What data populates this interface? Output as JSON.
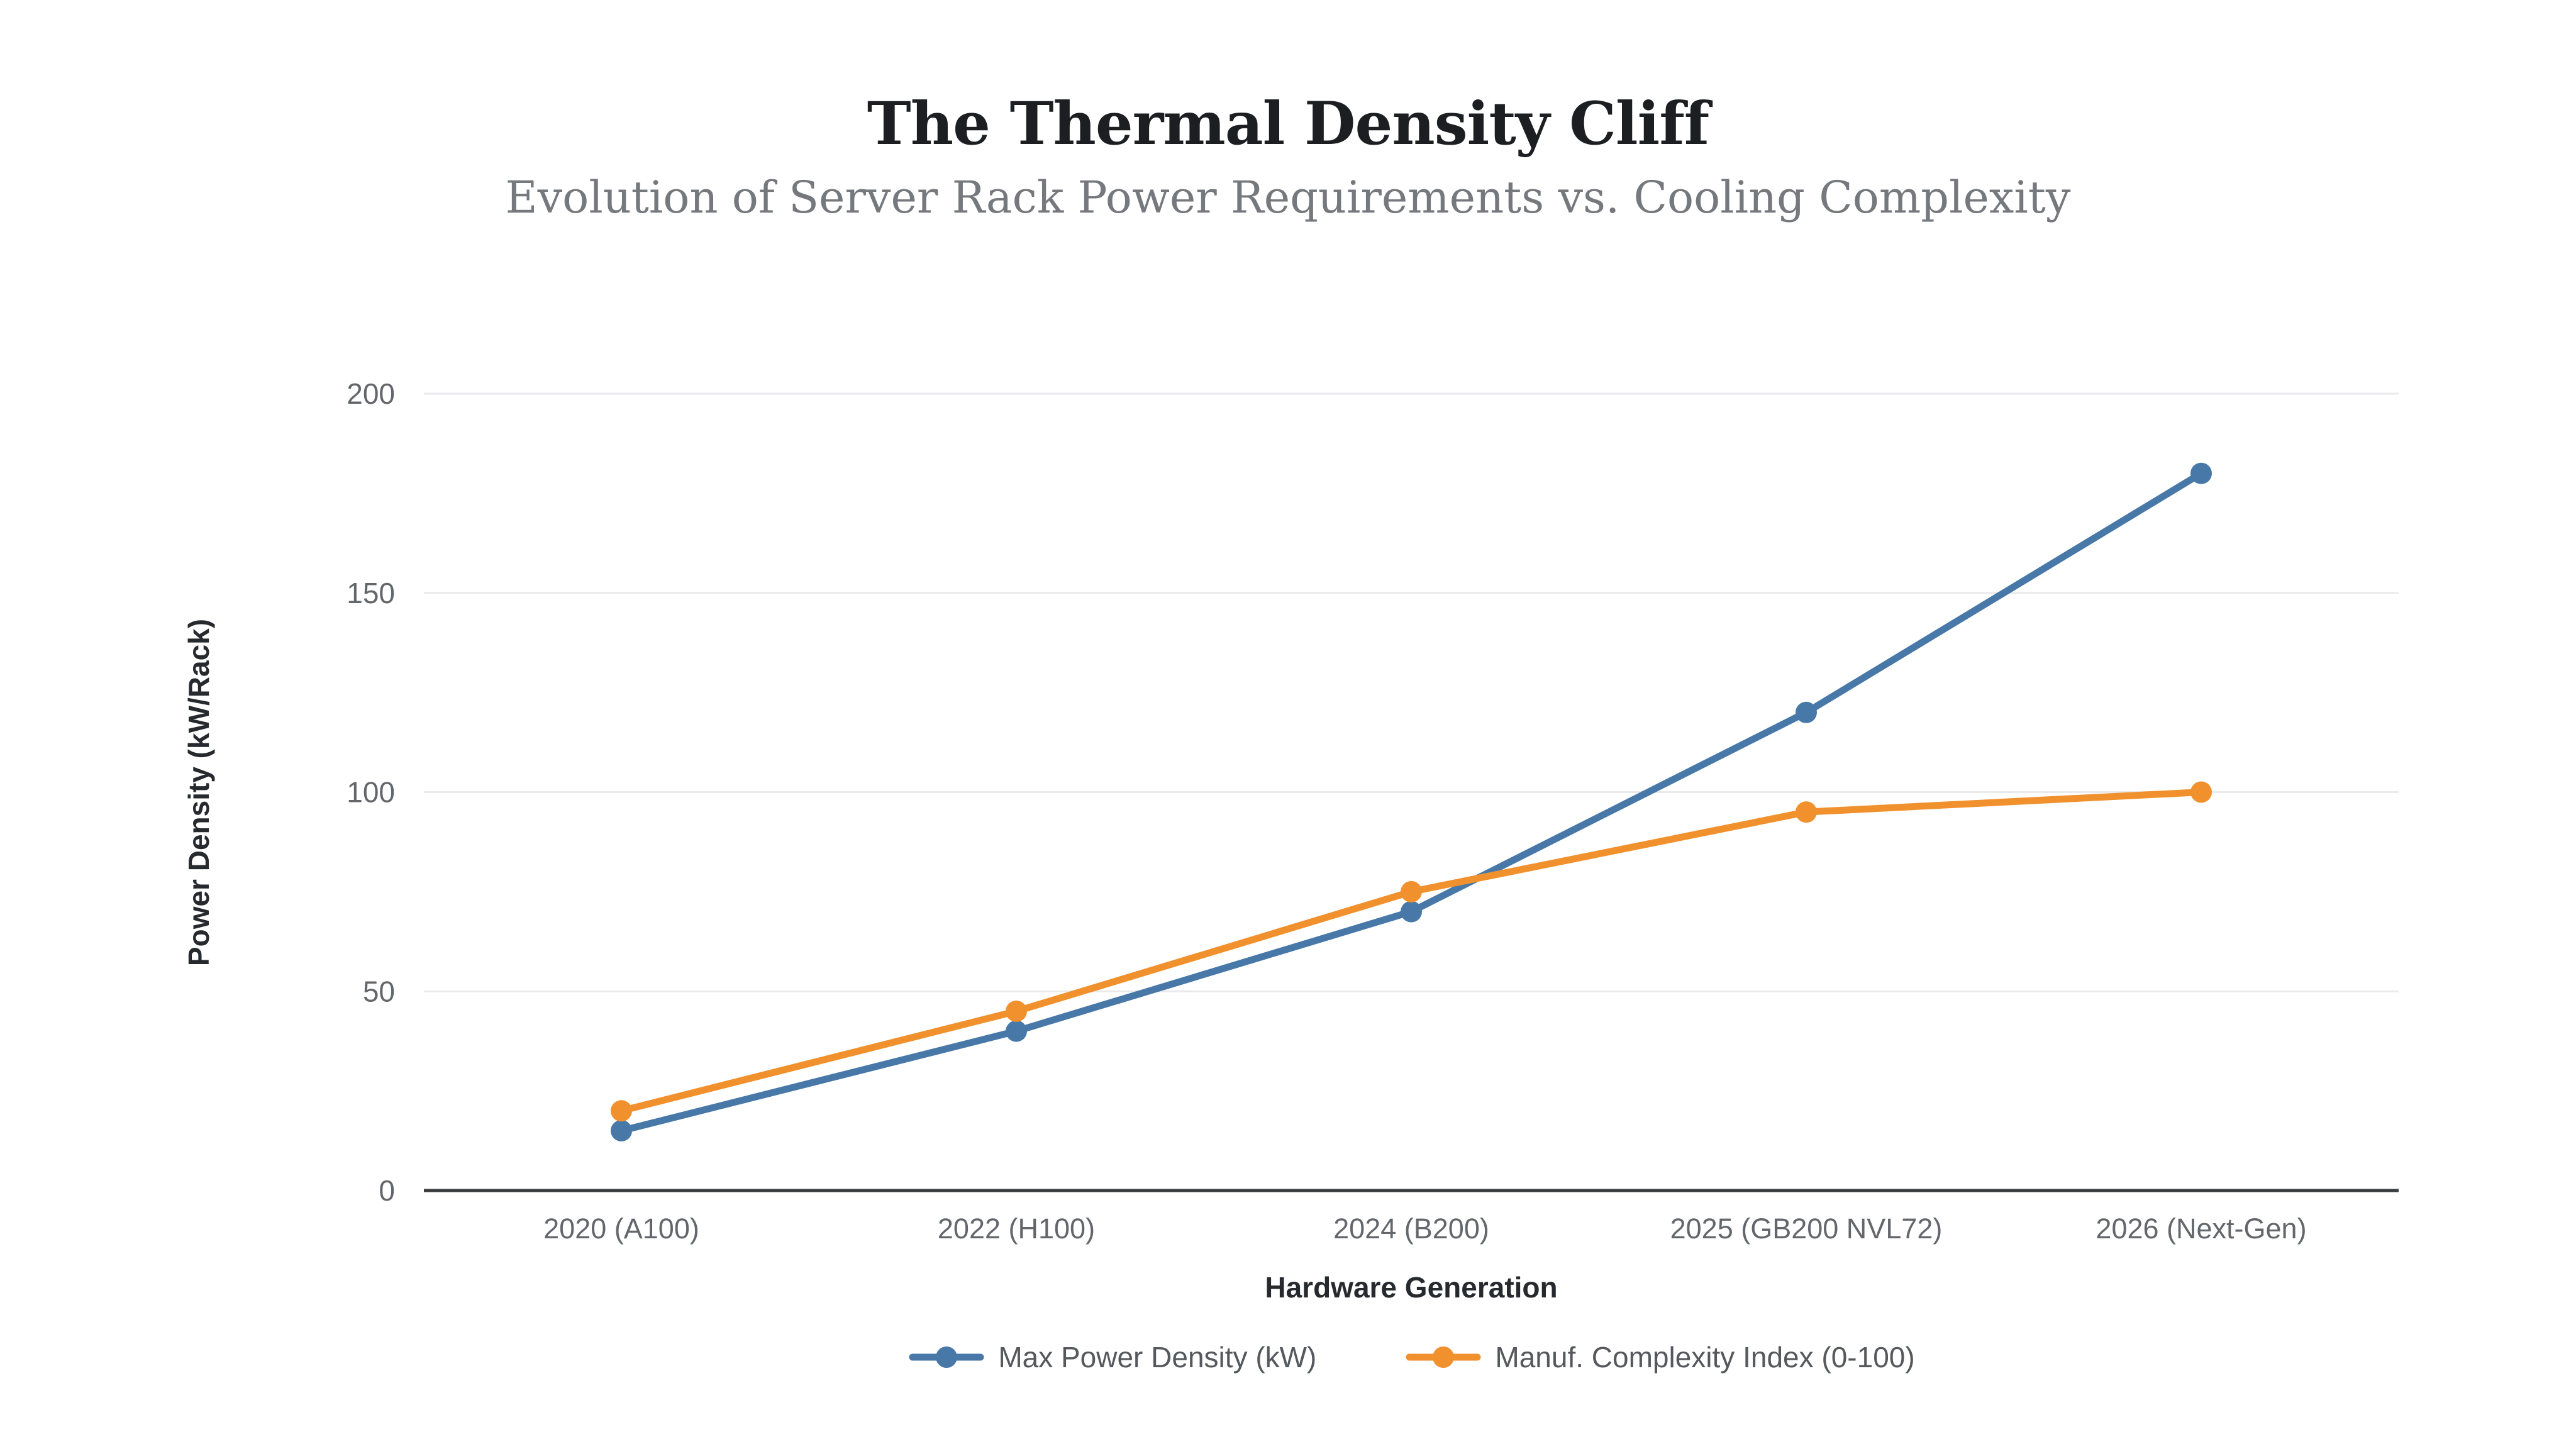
{
  "title": "The Thermal Density Cliff",
  "subtitle": "Evolution of Server Rack Power Requirements vs. Cooling Complexity",
  "chart_data": {
    "type": "line",
    "title": "The Thermal Density Cliff",
    "subtitle": "Evolution of Server Rack Power Requirements vs. Cooling Complexity",
    "categories": [
      "2020 (A100)",
      "2022 (H100)",
      "2024 (B200)",
      "2025 (GB200 NVL72)",
      "2026 (Next-Gen)"
    ],
    "series": [
      {
        "name": "Max Power Density (kW)",
        "color": "#4878A8",
        "values": [
          15,
          40,
          70,
          120,
          180
        ]
      },
      {
        "name": "Manuf. Complexity Index (0-100)",
        "color": "#F1912D",
        "values": [
          20,
          45,
          75,
          95,
          100
        ]
      }
    ],
    "xlabel": "Hardware Generation",
    "ylabel": "Power Density (kW/Rack)",
    "ylim": [
      0,
      200
    ],
    "yticks": [
      0,
      50,
      100,
      150,
      200
    ],
    "grid": true,
    "legend_position": "bottom",
    "marker": "circle"
  },
  "colors": {
    "background": "#FFFFFF",
    "title": "#1C1E21",
    "subtitle": "#75787C",
    "tick_label": "#63676C",
    "axis_title": "#26292D",
    "legend_text": "#55585C",
    "gridline": "#EAEAEC",
    "axis_line": "#3A3D40"
  }
}
